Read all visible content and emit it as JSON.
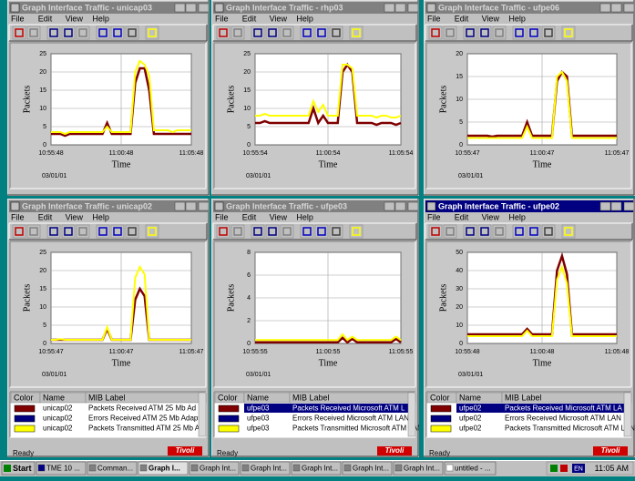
{
  "windows": [
    {
      "title": "Graph Interface Traffic - unicap03",
      "menu": [
        "File",
        "Edit",
        "View",
        "Help"
      ],
      "chart": {
        "ylabel": "Packets",
        "xlabel": "Time",
        "date": "03/01/01",
        "xticks": [
          "10:55:48",
          "11:00:48",
          "11:05:48"
        ],
        "ylim": [
          0,
          25
        ],
        "yticks": [
          0,
          5,
          10,
          15,
          20,
          25
        ],
        "series": [
          {
            "color": "#800000",
            "values": [
              3,
              3,
              3,
              2.5,
              3,
              3,
              3,
              3,
              3,
              3,
              3,
              3,
              6,
              3,
              3,
              3,
              3,
              3,
              17,
              21,
              21,
              15,
              3,
              3,
              3,
              3,
              3,
              3,
              3,
              3,
              3
            ]
          },
          {
            "color": "#ffff00",
            "values": [
              3.5,
              3.5,
              3.5,
              3,
              3.5,
              3.5,
              3.5,
              3.5,
              3.5,
              3.5,
              3.5,
              3.5,
              5,
              3.5,
              3.5,
              3.5,
              3.5,
              3.5,
              20,
              23,
              22,
              19,
              4,
              4,
              4,
              4,
              3.5,
              4,
              4,
              4,
              4
            ]
          }
        ]
      }
    },
    {
      "title": "Graph Interface Traffic - rhp03",
      "menu": [
        "File",
        "Edit",
        "View",
        "Help"
      ],
      "chart": {
        "ylabel": "Packets",
        "xlabel": "Time",
        "date": "03/01/01",
        "xticks": [
          "10:55:54",
          "11:00:54",
          "11:05:54"
        ],
        "ylim": [
          0,
          25
        ],
        "yticks": [
          0,
          5,
          10,
          15,
          20,
          25
        ],
        "series": [
          {
            "color": "#800000",
            "values": [
              6,
              6,
              6.5,
              6,
              6,
              6,
              6,
              6,
              6,
              6,
              6,
              6,
              10,
              6,
              8,
              6,
              6,
              6,
              20,
              22,
              20,
              6,
              6,
              6,
              6,
              5.5,
              6,
              6,
              6,
              5.5,
              6
            ]
          },
          {
            "color": "#ffff00",
            "values": [
              8,
              8,
              8.5,
              8,
              8,
              8,
              8,
              8,
              8,
              8,
              8,
              8,
              12,
              9,
              11,
              8,
              8,
              8,
              22,
              22,
              21,
              8,
              8,
              8,
              8,
              7.5,
              8,
              8,
              7.5,
              7.5,
              8
            ]
          }
        ]
      }
    },
    {
      "title": "Graph Interface Traffic - ufpe06",
      "menu": [
        "File",
        "Edit",
        "View",
        "Help"
      ],
      "chart": {
        "ylabel": "Packets",
        "xlabel": "Time",
        "date": "03/01/01",
        "xticks": [
          "10:55:47",
          "11:00:47",
          "11:05:47"
        ],
        "ylim": [
          0,
          20
        ],
        "yticks": [
          0,
          5,
          10,
          15,
          20
        ],
        "series": [
          {
            "color": "#800000",
            "values": [
              2,
              2,
              2,
              2,
              2,
              1.8,
              2,
              2,
              2,
              2,
              2,
              2,
              5,
              2,
              2,
              2,
              2,
              2,
              14,
              16,
              15,
              2,
              2,
              2,
              2,
              2,
              2,
              2,
              2,
              2,
              2
            ]
          },
          {
            "color": "#ffff00",
            "values": [
              1.5,
              1.5,
              1.5,
              1.5,
              1.5,
              1.5,
              1.5,
              1.5,
              1.5,
              1.5,
              1.5,
              1.5,
              4,
              1.5,
              1.5,
              1.5,
              1.5,
              1.5,
              15,
              16,
              14,
              1.5,
              1.5,
              1.5,
              1.5,
              1.5,
              1.5,
              1.5,
              1.5,
              1.5,
              1.5
            ]
          }
        ]
      }
    },
    {
      "title": "Graph Interface Traffic - unicap02",
      "menu": [
        "File",
        "Edit",
        "View",
        "Help"
      ],
      "chart": {
        "ylabel": "Packets",
        "xlabel": "Time",
        "date": "03/01/01",
        "xticks": [
          "10:55:47",
          "11:00:47",
          "11:05:47"
        ],
        "ylim": [
          0,
          25
        ],
        "yticks": [
          0,
          5,
          10,
          15,
          20,
          25
        ],
        "series": [
          {
            "color": "#800000",
            "values": [
              1,
              1,
              1,
              1,
              1,
              1,
              1,
              1,
              1,
              1,
              1,
              1,
              4,
              1,
              1,
              1,
              1,
              1,
              12,
              15,
              13,
              1,
              1,
              1,
              1,
              1,
              1,
              1,
              1,
              1,
              1
            ]
          },
          {
            "color": "#ffff00",
            "values": [
              1,
              1,
              1.2,
              1,
              1,
              1,
              1,
              1,
              1,
              1,
              1,
              1,
              4.5,
              1,
              1,
              1,
              1,
              1,
              18,
              21,
              19,
              1,
              1,
              1,
              1,
              1,
              1,
              1,
              1,
              1,
              1
            ]
          }
        ]
      },
      "table": {
        "columns": [
          "Color",
          "Name",
          "MIB Label"
        ],
        "rows": [
          {
            "color": "#800000",
            "name": "unicap02",
            "label": "Packets Received ATM 25 Mb Ad"
          },
          {
            "color": "#000080",
            "name": "unicap02",
            "label": "Errors Received ATM 25 Mb Adapt"
          },
          {
            "color": "#ffff00",
            "name": "unicap02",
            "label": "Packets Transmitted ATM 25 Mb A"
          }
        ]
      },
      "status": "Ready",
      "logo": "Tivoli"
    },
    {
      "title": "Graph Interface Traffic - ufpe03",
      "menu": [
        "File",
        "Edit",
        "View",
        "Help"
      ],
      "chart": {
        "ylabel": "Packets",
        "xlabel": "Time",
        "date": "03/01/01",
        "xticks": [
          "10:55:55",
          "11:00:55",
          "11:05:55"
        ],
        "ylim": [
          0,
          8
        ],
        "yticks": [
          0,
          2,
          4,
          6,
          8
        ],
        "series": [
          {
            "color": "#800000",
            "values": [
              0.1,
              0.1,
              0.1,
              0.1,
              0.1,
              0.1,
              0.1,
              0.1,
              0.1,
              0.1,
              0.1,
              0.1,
              0.1,
              0.1,
              0.1,
              0.1,
              0.1,
              0.1,
              0.5,
              0.1,
              0.4,
              0.1,
              0.1,
              0.1,
              0.1,
              0.1,
              0.1,
              0.1,
              0.1,
              0.4,
              0.1
            ]
          },
          {
            "color": "#ffff00",
            "values": [
              0.3,
              0.3,
              0.3,
              0.3,
              0.3,
              0.3,
              0.3,
              0.3,
              0.3,
              0.3,
              0.3,
              0.3,
              0.3,
              0.3,
              0.3,
              0.3,
              0.3,
              0.3,
              0.8,
              0.3,
              0.6,
              0.3,
              0.3,
              0.3,
              0.3,
              0.3,
              0.3,
              0.3,
              0.3,
              0.6,
              0.3
            ]
          }
        ]
      },
      "table": {
        "columns": [
          "Color",
          "Name",
          "MIB Label"
        ],
        "rows": [
          {
            "color": "#800000",
            "name": "ufpe03",
            "label": "Packets Received Microsoft ATM L"
          },
          {
            "color": "#000080",
            "name": "ufpe03",
            "label": "Errors Received Microsoft ATM LAN"
          },
          {
            "color": "#ffff00",
            "name": "ufpe03",
            "label": "Packets Transmitted Microsoft ATM LAN"
          }
        ]
      },
      "status": "Ready",
      "logo": "Tivoli"
    },
    {
      "title": "Graph Interface Traffic - ufpe02",
      "menu": [
        "File",
        "Edit",
        "View",
        "Help"
      ],
      "chart": {
        "ylabel": "Packets",
        "xlabel": "Time",
        "date": "03/01/01",
        "xticks": [
          "10:55:48",
          "11:00:48",
          "11:05:48"
        ],
        "ylim": [
          0,
          50
        ],
        "yticks": [
          0,
          10,
          20,
          30,
          40,
          50
        ],
        "series": [
          {
            "color": "#800000",
            "values": [
              5,
              5,
              5,
              5,
              5,
              5,
              5,
              5,
              5,
              5,
              5,
              5,
              8,
              5,
              5,
              5,
              5,
              5,
              40,
              48,
              38,
              5,
              5,
              5,
              5,
              5,
              5,
              5,
              5,
              5,
              5
            ]
          },
          {
            "color": "#ffff00",
            "values": [
              4,
              4,
              4,
              4,
              4,
              4,
              4,
              4,
              4,
              4,
              4,
              4,
              7,
              4,
              4,
              4,
              4,
              4,
              35,
              42,
              33,
              4,
              4,
              4,
              4,
              4,
              4,
              4,
              4,
              4,
              4
            ]
          }
        ]
      },
      "table": {
        "columns": [
          "Color",
          "Name",
          "MIB Label"
        ],
        "rows": [
          {
            "color": "#800000",
            "name": "ufpe02",
            "label": "Packets Received Microsoft ATM LA"
          },
          {
            "color": "#000080",
            "name": "ufpe02",
            "label": "Errors Received Microsoft ATM LAN"
          },
          {
            "color": "#ffff00",
            "name": "ufpe02",
            "label": "Packets Transmitted Microsoft ATM LAN"
          }
        ]
      },
      "status": "Ready",
      "logo": "Tivoli"
    }
  ],
  "taskbar": {
    "start": "Start",
    "items": [
      "TME 10 ...",
      "Comman...",
      "Graph I...",
      "Graph Int...",
      "Graph Int...",
      "Graph Int...",
      "Graph Int...",
      "Graph Int...",
      "untitled - ..."
    ],
    "tray": "EN",
    "clock": "11:05 AM"
  }
}
